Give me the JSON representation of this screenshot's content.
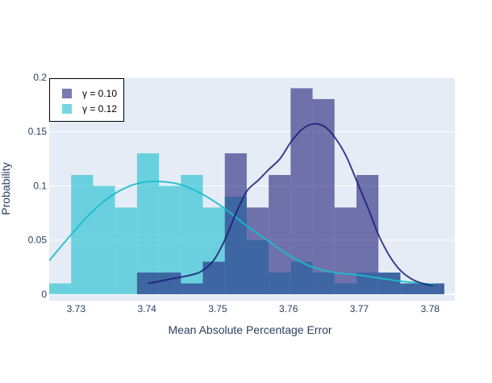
{
  "chart_data": {
    "type": "histogram",
    "xlabel": "Mean Absolute Percentage Error",
    "ylabel": "Probability",
    "xlim": [
      3.7262,
      3.7835
    ],
    "ylim": [
      -0.006,
      0.2
    ],
    "xticks": [
      {
        "value": 3.73,
        "label": "3.73"
      },
      {
        "value": 3.74,
        "label": "3.74"
      },
      {
        "value": 3.75,
        "label": "3.75"
      },
      {
        "value": 3.76,
        "label": "3.76"
      },
      {
        "value": 3.77,
        "label": "3.77"
      },
      {
        "value": 3.78,
        "label": "3.78"
      }
    ],
    "yticks": [
      {
        "value": 0,
        "label": "0"
      },
      {
        "value": 0.05,
        "label": "0.05"
      },
      {
        "value": 0.1,
        "label": "0.1"
      },
      {
        "value": 0.15,
        "label": "0.15"
      },
      {
        "value": 0.2,
        "label": "0.2"
      }
    ],
    "grid": true,
    "legend_position": "top-left",
    "bin_width": 0.0031,
    "series": [
      {
        "name": "γ = 0.12",
        "bar_color": "#17becf",
        "bar_opacity": 0.6,
        "line_color": "#17becf",
        "bin_starts": [
          3.7262,
          3.7293,
          3.7324,
          3.7355,
          3.7386,
          3.7417,
          3.7448,
          3.7479,
          3.751,
          3.7541,
          3.7572,
          3.7603,
          3.7634,
          3.7665,
          3.7696,
          3.7727,
          3.7758,
          3.7789
        ],
        "values": [
          0.01,
          0.11,
          0.1,
          0.08,
          0.13,
          0.1,
          0.11,
          0.08,
          0.09,
          0.05,
          0.02,
          0.03,
          0.02,
          0.01,
          0.02,
          0.02,
          0.01,
          0.01
        ],
        "kde": [
          [
            3.7262,
            0.031
          ],
          [
            3.7293,
            0.055
          ],
          [
            3.7324,
            0.077
          ],
          [
            3.7355,
            0.093
          ],
          [
            3.7386,
            0.102
          ],
          [
            3.7417,
            0.104
          ],
          [
            3.7448,
            0.101
          ],
          [
            3.7479,
            0.092
          ],
          [
            3.751,
            0.079
          ],
          [
            3.7541,
            0.063
          ],
          [
            3.7572,
            0.049
          ],
          [
            3.7603,
            0.035
          ],
          [
            3.7634,
            0.025
          ],
          [
            3.7665,
            0.02
          ],
          [
            3.7696,
            0.018
          ],
          [
            3.7727,
            0.015
          ],
          [
            3.7758,
            0.012
          ],
          [
            3.7789,
            0.01
          ],
          [
            3.7804,
            0.009
          ]
        ]
      },
      {
        "name": "γ = 0.10",
        "bar_color": "#1f1f7a",
        "bar_opacity": 0.6,
        "line_color": "#1f1f7a",
        "bin_starts": [
          3.7262,
          3.7293,
          3.7324,
          3.7355,
          3.7386,
          3.7417,
          3.7448,
          3.7479,
          3.751,
          3.7541,
          3.7572,
          3.7603,
          3.7634,
          3.7665,
          3.7696,
          3.7727,
          3.7758,
          3.7789
        ],
        "values": [
          0,
          0,
          0,
          0,
          0.02,
          0.02,
          0.01,
          0.03,
          0.13,
          0.08,
          0.11,
          0.19,
          0.18,
          0.08,
          0.11,
          0.02,
          0.01,
          0.01
        ],
        "kde": [
          [
            3.7402,
            0.01
          ],
          [
            3.7433,
            0.014
          ],
          [
            3.7464,
            0.018
          ],
          [
            3.7479,
            0.022
          ],
          [
            3.7495,
            0.032
          ],
          [
            3.751,
            0.05
          ],
          [
            3.7526,
            0.075
          ],
          [
            3.7541,
            0.095
          ],
          [
            3.7557,
            0.105
          ],
          [
            3.7572,
            0.115
          ],
          [
            3.7588,
            0.125
          ],
          [
            3.7603,
            0.14
          ],
          [
            3.7619,
            0.152
          ],
          [
            3.7634,
            0.157
          ],
          [
            3.765,
            0.155
          ],
          [
            3.7665,
            0.145
          ],
          [
            3.7681,
            0.128
          ],
          [
            3.7696,
            0.105
          ],
          [
            3.7712,
            0.08
          ],
          [
            3.7727,
            0.055
          ],
          [
            3.7743,
            0.035
          ],
          [
            3.7758,
            0.022
          ],
          [
            3.7774,
            0.014
          ],
          [
            3.7789,
            0.01
          ],
          [
            3.7804,
            0.008
          ]
        ]
      }
    ],
    "legend_order": [
      1,
      0
    ]
  }
}
